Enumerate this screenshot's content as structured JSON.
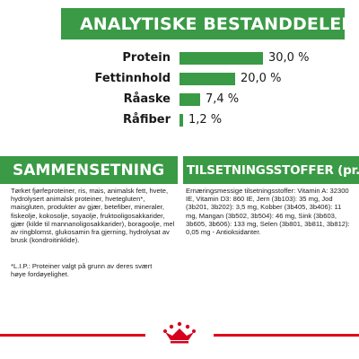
{
  "colors": {
    "green": "#3a9a45",
    "footer_red": "#e0001b",
    "logo_red": "#d5001e"
  },
  "analytical": {
    "title": "ANALYTISKE BESTANDDELER",
    "rows": [
      {
        "label": "Protein",
        "value": "30,0 %",
        "percent": 30.0
      },
      {
        "label": "Fettinnhold",
        "value": "20,0 %",
        "percent": 20.0
      },
      {
        "label": "Råaske",
        "value": "7,4 %",
        "percent": 7.4
      },
      {
        "label": "Råfiber",
        "value": "1,2 %",
        "percent": 1.2
      }
    ]
  },
  "composition": {
    "title": "SAMMENSETNING",
    "text": "Tørket fjørfeproteiner, ris, mais, animalsk fett, hvete, hydrolysert animalsk proteiner, hvetegluten*, maisgluten, produkter av gjær, betefiber, mineraler, fiskeolje, kokosolje, soyaolje, fruktooligosakkarider, gjær (kilde til mannanoligosakkarider), boragoolje, mel av ringblomst, glukosamin fra gjerning, hydrolysat av brusk (kondroitinklide).",
    "lip_note": "*L.I.P.: Proteiner valgt på grunn av deres svært høye fordøyelighet."
  },
  "additives": {
    "title": "TILSETNINGSSTOFFER (pr. kg)",
    "text": "Ernæringsmessige tilsetningsstoffer: Vitamin A: 32300 IE, Vitamin D3: 860 IE, Jern (3b103): 35 mg, Jod (3b201, 3b202): 3,5 mg, Kobber (3b405, 3b406): 11 mg, Mangan (3b502, 3b504): 46 mg, Sink (3b603, 3b605, 3b606): 133 mg, Selen (3b801, 3b811, 3b812): 0,05 mg - Antioksidanter."
  },
  "footer": {
    "logo_icon": "royal-canin-crown-logo-icon"
  }
}
